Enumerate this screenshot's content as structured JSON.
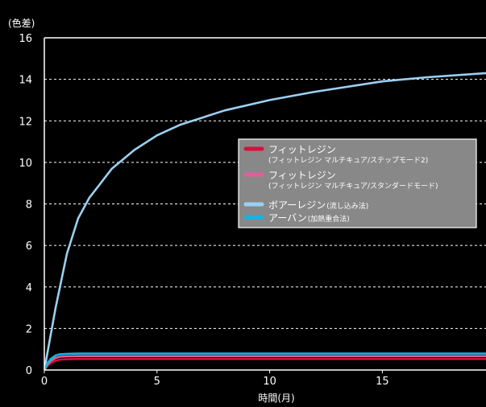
{
  "chart_data": {
    "type": "line",
    "title": "",
    "ylabel": "(色差)",
    "xlabel": "時間(月)",
    "xlim": [
      0,
      19.6
    ],
    "ylim": [
      0,
      16
    ],
    "x_ticks": [
      "0",
      "5",
      "10",
      "15"
    ],
    "y_ticks": [
      "0",
      "2",
      "4",
      "6",
      "8",
      "10",
      "12",
      "14",
      "16"
    ],
    "grid": true,
    "legend_position": "center-right",
    "series": [
      {
        "name": "フィットレジン",
        "sublabel": "(フィットレジン マルチキュア/ステップモード2)",
        "color": "#d4103c",
        "x": [
          0,
          0.15,
          0.3,
          0.5,
          0.7,
          1,
          1.5,
          2,
          3,
          5,
          10,
          15,
          19.6
        ],
        "y": [
          0,
          0.22,
          0.35,
          0.45,
          0.5,
          0.52,
          0.53,
          0.53,
          0.53,
          0.53,
          0.53,
          0.53,
          0.53
        ]
      },
      {
        "name": "フィットレジン",
        "sublabel": "(フィットレジン マルチキュア/スタンダードモード)",
        "color": "#e0609a",
        "x": [
          0,
          0.15,
          0.3,
          0.5,
          0.7,
          1,
          1.5,
          2,
          3,
          5,
          10,
          15,
          19.6
        ],
        "y": [
          0,
          0.28,
          0.45,
          0.58,
          0.64,
          0.66,
          0.67,
          0.67,
          0.67,
          0.67,
          0.67,
          0.67,
          0.67
        ]
      },
      {
        "name": "ボアーレジン",
        "sublabel": "(流し込み法)",
        "color": "#9bd0f2",
        "x": [
          0,
          0.2,
          0.5,
          1,
          1.5,
          2,
          3,
          4,
          5,
          6,
          8,
          10,
          12,
          15,
          17,
          19.6
        ],
        "y": [
          0,
          1.2,
          3.0,
          5.6,
          7.3,
          8.3,
          9.7,
          10.6,
          11.3,
          11.8,
          12.5,
          13.0,
          13.4,
          13.9,
          14.1,
          14.3
        ]
      },
      {
        "name": "アーバン",
        "sublabel": "(加熱重合法)",
        "color": "#12b3e6",
        "x": [
          0,
          0.15,
          0.3,
          0.5,
          0.7,
          1,
          1.5,
          2,
          3,
          5,
          10,
          15,
          19.6
        ],
        "y": [
          0,
          0.35,
          0.55,
          0.7,
          0.76,
          0.78,
          0.79,
          0.79,
          0.79,
          0.79,
          0.79,
          0.79,
          0.79
        ]
      }
    ]
  }
}
